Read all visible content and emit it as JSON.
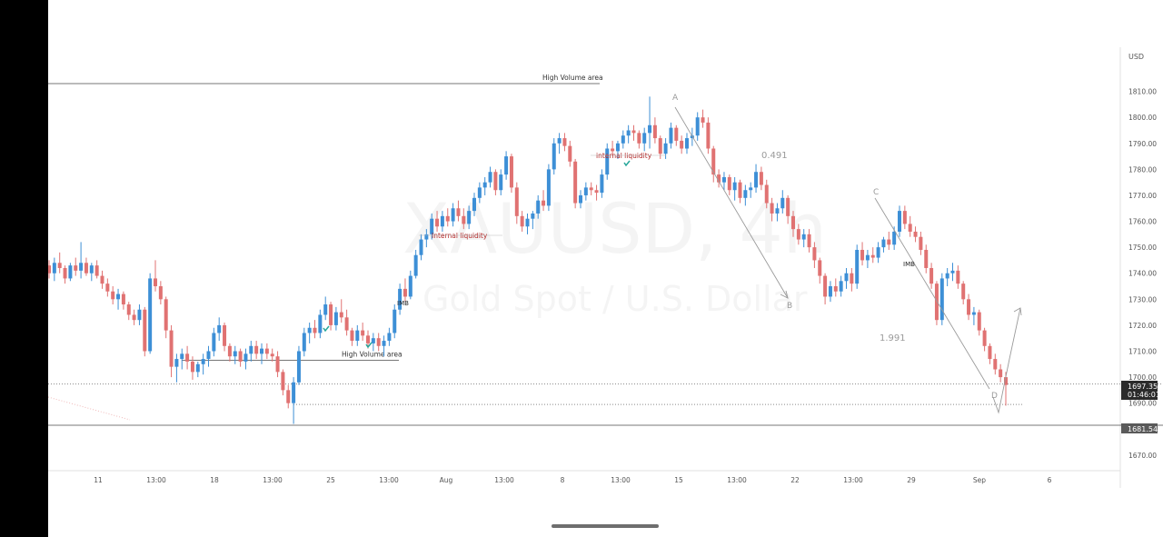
{
  "chart_data": {
    "type": "candlestick",
    "symbol_watermark": "XAUUSD, 4h",
    "watermark_subtitle": "Gold Spot / U.S. Dollar",
    "currency": "USD",
    "ylim": [
      1664,
      1827
    ],
    "y_ticks": [
      1670,
      1680,
      1690,
      1700,
      1710,
      1720,
      1730,
      1740,
      1750,
      1760,
      1770,
      1780,
      1790,
      1800,
      1810
    ],
    "x_ticks": [
      "11",
      "13:00",
      "18",
      "13:00",
      "25",
      "13:00",
      "Aug",
      "13:00",
      "8",
      "13:00",
      "15",
      "13:00",
      "22",
      "13:00",
      "29",
      "Sep",
      "6"
    ],
    "grid": false,
    "colors": {
      "up": "#3d8fd6",
      "down": "#e07272",
      "wick_up": "#3d8fd6",
      "wick_down": "#e07272",
      "axis_text": "#555555",
      "annotation_red": "#b22222",
      "pattern_gray": "#9a9a9a",
      "check_teal": "#26a69a"
    },
    "price_labels": {
      "current": "1697.35",
      "countdown": "01:46:01",
      "level": "1681.54"
    },
    "horizontal_levels": [
      {
        "price": 1813,
        "label": "High Volume area",
        "kind": "solid"
      },
      {
        "price": 1706.5,
        "label": "High Volume area",
        "kind": "solid"
      },
      {
        "price": 1681.5,
        "label": "",
        "kind": "solid"
      },
      {
        "price": 1697.35,
        "label": "",
        "kind": "dotted"
      },
      {
        "price": 1689.5,
        "label": "",
        "kind": "dotted"
      }
    ],
    "annotations": {
      "internal_liquidity_1": "Internal liquidity",
      "internal_liquidity_2": "internal liquidity",
      "imb_1": "IMB",
      "imb_2": "IMB",
      "ratio_1": "0.491",
      "ratio_2": "1.991",
      "point_a": "A",
      "point_b": "B",
      "point_c": "C",
      "point_d": "D"
    },
    "candles": [
      [
        1743,
        1745,
        1738,
        1740
      ],
      [
        1740,
        1746,
        1737,
        1744
      ],
      [
        1744,
        1748,
        1740,
        1742
      ],
      [
        1742,
        1743,
        1736,
        1738
      ],
      [
        1738,
        1744,
        1737,
        1743
      ],
      [
        1743,
        1746,
        1739,
        1741
      ],
      [
        1741,
        1752,
        1738,
        1744
      ],
      [
        1744,
        1746,
        1739,
        1740
      ],
      [
        1740,
        1744,
        1737,
        1743
      ],
      [
        1743,
        1745,
        1738,
        1739
      ],
      [
        1739,
        1741,
        1734,
        1736
      ],
      [
        1736,
        1738,
        1731,
        1733
      ],
      [
        1733,
        1735,
        1728,
        1730
      ],
      [
        1730,
        1734,
        1726,
        1732
      ],
      [
        1732,
        1733,
        1726,
        1728
      ],
      [
        1728,
        1729,
        1722,
        1724
      ],
      [
        1724,
        1726,
        1720,
        1722
      ],
      [
        1722,
        1728,
        1720,
        1726
      ],
      [
        1726,
        1727,
        1708,
        1710
      ],
      [
        1710,
        1740,
        1709,
        1738
      ],
      [
        1738,
        1745,
        1733,
        1735
      ],
      [
        1735,
        1737,
        1728,
        1730
      ],
      [
        1730,
        1731,
        1715,
        1718
      ],
      [
        1718,
        1720,
        1700,
        1704
      ],
      [
        1704,
        1709,
        1698,
        1707
      ],
      [
        1707,
        1711,
        1703,
        1709
      ],
      [
        1709,
        1712,
        1703,
        1706
      ],
      [
        1706,
        1708,
        1699,
        1702
      ],
      [
        1702,
        1706,
        1700,
        1705
      ],
      [
        1705,
        1709,
        1701,
        1707
      ],
      [
        1707,
        1712,
        1704,
        1710
      ],
      [
        1710,
        1719,
        1708,
        1717
      ],
      [
        1717,
        1723,
        1714,
        1720
      ],
      [
        1720,
        1721,
        1710,
        1712
      ],
      [
        1712,
        1713,
        1706,
        1708
      ],
      [
        1708,
        1712,
        1705,
        1710
      ],
      [
        1710,
        1711,
        1704,
        1706
      ],
      [
        1706,
        1711,
        1703,
        1709
      ],
      [
        1709,
        1714,
        1706,
        1712
      ],
      [
        1712,
        1714,
        1707,
        1709
      ],
      [
        1709,
        1713,
        1705,
        1711
      ],
      [
        1711,
        1713,
        1707,
        1709
      ],
      [
        1709,
        1711,
        1706,
        1708
      ],
      [
        1708,
        1710,
        1700,
        1702
      ],
      [
        1702,
        1703,
        1693,
        1695
      ],
      [
        1695,
        1697,
        1688,
        1690
      ],
      [
        1690,
        1700,
        1682,
        1698
      ],
      [
        1698,
        1712,
        1697,
        1710
      ],
      [
        1710,
        1719,
        1708,
        1717
      ],
      [
        1717,
        1721,
        1713,
        1719
      ],
      [
        1719,
        1722,
        1715,
        1717
      ],
      [
        1717,
        1726,
        1715,
        1724
      ],
      [
        1724,
        1731,
        1722,
        1728
      ],
      [
        1728,
        1729,
        1718,
        1720
      ],
      [
        1720,
        1727,
        1718,
        1725
      ],
      [
        1725,
        1730,
        1721,
        1723
      ],
      [
        1723,
        1726,
        1716,
        1718
      ],
      [
        1718,
        1719,
        1712,
        1714
      ],
      [
        1714,
        1720,
        1712,
        1718
      ],
      [
        1718,
        1721,
        1714,
        1716
      ],
      [
        1716,
        1718,
        1711,
        1713
      ],
      [
        1713,
        1717,
        1710,
        1715
      ],
      [
        1715,
        1717,
        1710,
        1712
      ],
      [
        1712,
        1716,
        1708,
        1714
      ],
      [
        1714,
        1719,
        1712,
        1717
      ],
      [
        1717,
        1728,
        1715,
        1726
      ],
      [
        1726,
        1736,
        1724,
        1734
      ],
      [
        1734,
        1738,
        1729,
        1731
      ],
      [
        1731,
        1741,
        1730,
        1739
      ],
      [
        1739,
        1749,
        1738,
        1747
      ],
      [
        1747,
        1755,
        1745,
        1753
      ],
      [
        1753,
        1757,
        1750,
        1755
      ],
      [
        1755,
        1763,
        1753,
        1761
      ],
      [
        1761,
        1764,
        1756,
        1758
      ],
      [
        1758,
        1764,
        1756,
        1762
      ],
      [
        1762,
        1765,
        1758,
        1760
      ],
      [
        1760,
        1767,
        1758,
        1765
      ],
      [
        1765,
        1768,
        1760,
        1762
      ],
      [
        1762,
        1765,
        1757,
        1759
      ],
      [
        1759,
        1766,
        1757,
        1764
      ],
      [
        1764,
        1771,
        1762,
        1769
      ],
      [
        1769,
        1775,
        1767,
        1773
      ],
      [
        1773,
        1777,
        1770,
        1775
      ],
      [
        1775,
        1781,
        1773,
        1779
      ],
      [
        1779,
        1780,
        1770,
        1772
      ],
      [
        1772,
        1780,
        1770,
        1778
      ],
      [
        1778,
        1787,
        1776,
        1785
      ],
      [
        1785,
        1786,
        1771,
        1773
      ],
      [
        1773,
        1775,
        1759,
        1762
      ],
      [
        1762,
        1764,
        1756,
        1758
      ],
      [
        1758,
        1763,
        1755,
        1761
      ],
      [
        1761,
        1764,
        1757,
        1763
      ],
      [
        1763,
        1770,
        1761,
        1768
      ],
      [
        1768,
        1772,
        1764,
        1766
      ],
      [
        1766,
        1782,
        1764,
        1780
      ],
      [
        1780,
        1792,
        1778,
        1790
      ],
      [
        1790,
        1794,
        1786,
        1792
      ],
      [
        1792,
        1794,
        1787,
        1789
      ],
      [
        1789,
        1791,
        1781,
        1783
      ],
      [
        1783,
        1784,
        1765,
        1767
      ],
      [
        1767,
        1772,
        1765,
        1770
      ],
      [
        1770,
        1775,
        1768,
        1773
      ],
      [
        1773,
        1775,
        1770,
        1772
      ],
      [
        1772,
        1774,
        1768,
        1771
      ],
      [
        1771,
        1780,
        1769,
        1778
      ],
      [
        1778,
        1790,
        1776,
        1788
      ],
      [
        1788,
        1791,
        1785,
        1787
      ],
      [
        1787,
        1791,
        1784,
        1790
      ],
      [
        1790,
        1795,
        1788,
        1793
      ],
      [
        1793,
        1797,
        1790,
        1795
      ],
      [
        1795,
        1797,
        1791,
        1794
      ],
      [
        1794,
        1795,
        1788,
        1790
      ],
      [
        1790,
        1796,
        1787,
        1794
      ],
      [
        1794,
        1808,
        1788,
        1797
      ],
      [
        1797,
        1800,
        1790,
        1792
      ],
      [
        1792,
        1793,
        1784,
        1786
      ],
      [
        1786,
        1792,
        1784,
        1790
      ],
      [
        1790,
        1798,
        1788,
        1796
      ],
      [
        1796,
        1797,
        1789,
        1791
      ],
      [
        1791,
        1793,
        1786,
        1788
      ],
      [
        1788,
        1794,
        1786,
        1792
      ],
      [
        1792,
        1796,
        1789,
        1793
      ],
      [
        1793,
        1802,
        1791,
        1800
      ],
      [
        1800,
        1803,
        1796,
        1798
      ],
      [
        1798,
        1800,
        1786,
        1788
      ],
      [
        1788,
        1789,
        1775,
        1778
      ],
      [
        1778,
        1780,
        1773,
        1775
      ],
      [
        1775,
        1779,
        1772,
        1777
      ],
      [
        1777,
        1778,
        1770,
        1772
      ],
      [
        1772,
        1777,
        1768,
        1775
      ],
      [
        1775,
        1776,
        1767,
        1769
      ],
      [
        1769,
        1774,
        1766,
        1772
      ],
      [
        1772,
        1775,
        1769,
        1773
      ],
      [
        1773,
        1782,
        1771,
        1779
      ],
      [
        1779,
        1781,
        1772,
        1774
      ],
      [
        1774,
        1776,
        1765,
        1767
      ],
      [
        1767,
        1769,
        1760,
        1763
      ],
      [
        1763,
        1767,
        1760,
        1765
      ],
      [
        1765,
        1772,
        1763,
        1769
      ],
      [
        1769,
        1770,
        1759,
        1762
      ],
      [
        1762,
        1764,
        1754,
        1757
      ],
      [
        1757,
        1759,
        1751,
        1753
      ],
      [
        1753,
        1757,
        1750,
        1755
      ],
      [
        1755,
        1757,
        1748,
        1750
      ],
      [
        1750,
        1752,
        1742,
        1745
      ],
      [
        1745,
        1746,
        1736,
        1739
      ],
      [
        1739,
        1740,
        1728,
        1731
      ],
      [
        1731,
        1737,
        1729,
        1735
      ],
      [
        1735,
        1738,
        1731,
        1733
      ],
      [
        1733,
        1739,
        1731,
        1737
      ],
      [
        1737,
        1742,
        1734,
        1740
      ],
      [
        1740,
        1742,
        1733,
        1736
      ],
      [
        1736,
        1751,
        1734,
        1749
      ],
      [
        1749,
        1752,
        1743,
        1745
      ],
      [
        1745,
        1749,
        1742,
        1747
      ],
      [
        1747,
        1750,
        1744,
        1746
      ],
      [
        1746,
        1752,
        1744,
        1750
      ],
      [
        1750,
        1754,
        1748,
        1753
      ],
      [
        1753,
        1756,
        1749,
        1751
      ],
      [
        1751,
        1758,
        1749,
        1756
      ],
      [
        1756,
        1766,
        1754,
        1764
      ],
      [
        1764,
        1766,
        1757,
        1759
      ],
      [
        1759,
        1762,
        1754,
        1756
      ],
      [
        1756,
        1758,
        1752,
        1754
      ],
      [
        1754,
        1756,
        1747,
        1749
      ],
      [
        1749,
        1751,
        1740,
        1742
      ],
      [
        1742,
        1744,
        1734,
        1736
      ],
      [
        1736,
        1737,
        1720,
        1722
      ],
      [
        1722,
        1740,
        1720,
        1738
      ],
      [
        1738,
        1742,
        1735,
        1740
      ],
      [
        1740,
        1744,
        1737,
        1741
      ],
      [
        1741,
        1743,
        1734,
        1736
      ],
      [
        1736,
        1737,
        1728,
        1730
      ],
      [
        1730,
        1732,
        1722,
        1724
      ],
      [
        1724,
        1727,
        1720,
        1725
      ],
      [
        1725,
        1726,
        1716,
        1718
      ],
      [
        1718,
        1719,
        1710,
        1712
      ],
      [
        1712,
        1713,
        1705,
        1707
      ],
      [
        1707,
        1709,
        1701,
        1703
      ],
      [
        1703,
        1705,
        1698,
        1700
      ],
      [
        1700,
        1702,
        1689,
        1697
      ]
    ]
  },
  "axis": {
    "y_labels": [
      "1670.00",
      "1680.00",
      "1690.00",
      "1700.00",
      "1710.00",
      "1720.00",
      "1730.00",
      "1740.00",
      "1750.00",
      "1760.00",
      "1770.00",
      "1780.00",
      "1790.00",
      "1800.00",
      "1810.00"
    ]
  }
}
